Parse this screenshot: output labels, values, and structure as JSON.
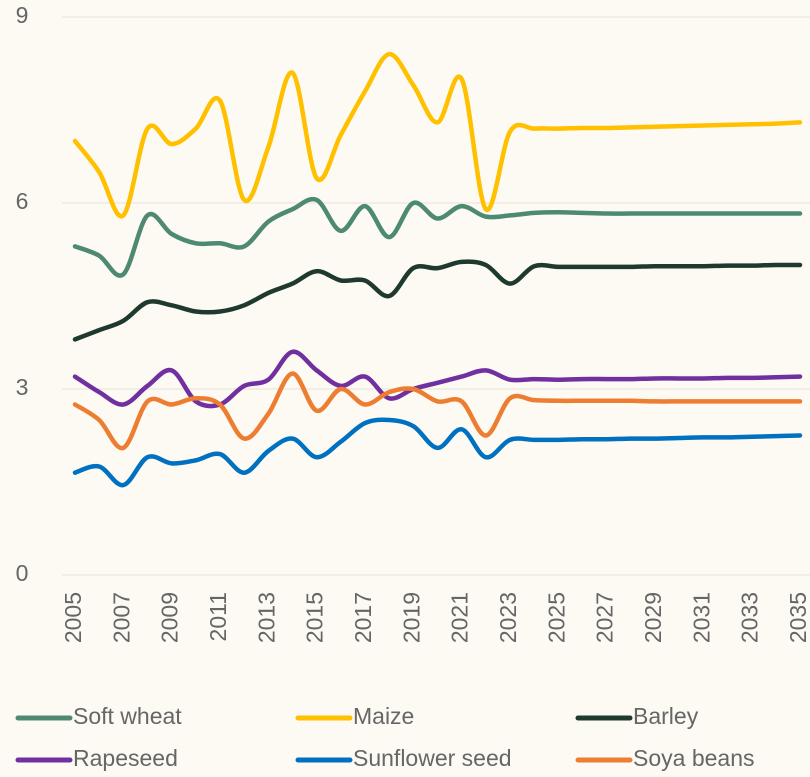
{
  "chart_data": {
    "type": "line",
    "x": [
      2005,
      2006,
      2007,
      2008,
      2009,
      2010,
      2011,
      2012,
      2013,
      2014,
      2015,
      2016,
      2017,
      2018,
      2019,
      2020,
      2021,
      2022,
      2023,
      2024,
      2025,
      2026,
      2027,
      2028,
      2029,
      2030,
      2031,
      2032,
      2033,
      2034,
      2035
    ],
    "xlim": [
      2005,
      2035
    ],
    "xticks": [
      2005,
      2007,
      2009,
      2011,
      2013,
      2015,
      2017,
      2019,
      2021,
      2023,
      2025,
      2027,
      2029,
      2031,
      2033,
      2035
    ],
    "ylim": [
      0,
      9
    ],
    "yticks": [
      0,
      3,
      6,
      9
    ],
    "grid": true,
    "legend": "bottom",
    "series": [
      {
        "name": "Soft wheat",
        "color": "#4e8a72",
        "values": [
          5.3,
          5.15,
          4.85,
          5.8,
          5.5,
          5.35,
          5.35,
          5.3,
          5.7,
          5.9,
          6.05,
          5.55,
          5.95,
          5.45,
          6.0,
          5.75,
          5.95,
          5.78,
          5.8,
          5.84,
          5.85,
          5.84,
          5.83,
          5.83,
          5.83,
          5.83,
          5.83,
          5.83,
          5.83,
          5.83,
          5.83
        ]
      },
      {
        "name": "Maize",
        "color": "#ffc000",
        "values": [
          7.0,
          6.5,
          5.8,
          7.2,
          6.95,
          7.2,
          7.65,
          6.05,
          6.9,
          8.1,
          6.4,
          7.1,
          7.8,
          8.4,
          7.9,
          7.3,
          8.0,
          5.9,
          7.15,
          7.2,
          7.2,
          7.21,
          7.21,
          7.22,
          7.23,
          7.24,
          7.25,
          7.26,
          7.27,
          7.28,
          7.3
        ]
      },
      {
        "name": "Barley",
        "color": "#1e3a2e",
        "values": [
          3.8,
          3.95,
          4.1,
          4.4,
          4.35,
          4.25,
          4.25,
          4.35,
          4.55,
          4.7,
          4.9,
          4.75,
          4.75,
          4.5,
          4.95,
          4.95,
          5.05,
          5.0,
          4.7,
          4.98,
          4.97,
          4.97,
          4.97,
          4.97,
          4.98,
          4.98,
          4.98,
          4.99,
          4.99,
          5.0,
          5.0
        ]
      },
      {
        "name": "Rapeseed",
        "color": "#7030a0",
        "values": [
          3.2,
          2.95,
          2.75,
          3.05,
          3.3,
          2.8,
          2.75,
          3.05,
          3.15,
          3.6,
          3.3,
          3.05,
          3.2,
          2.85,
          3.0,
          3.1,
          3.2,
          3.3,
          3.15,
          3.16,
          3.15,
          3.16,
          3.16,
          3.16,
          3.17,
          3.17,
          3.17,
          3.18,
          3.18,
          3.19,
          3.2
        ]
      },
      {
        "name": "Sunflower seed",
        "color": "#0070c0",
        "values": [
          1.65,
          1.75,
          1.45,
          1.9,
          1.8,
          1.85,
          1.95,
          1.65,
          2.0,
          2.2,
          1.9,
          2.15,
          2.45,
          2.5,
          2.4,
          2.05,
          2.35,
          1.9,
          2.18,
          2.18,
          2.18,
          2.19,
          2.19,
          2.2,
          2.2,
          2.21,
          2.22,
          2.22,
          2.23,
          2.24,
          2.25
        ]
      },
      {
        "name": "Soya beans",
        "color": "#ed7d31",
        "values": [
          2.75,
          2.5,
          2.05,
          2.8,
          2.75,
          2.85,
          2.75,
          2.2,
          2.6,
          3.25,
          2.65,
          3.0,
          2.75,
          2.95,
          3.0,
          2.8,
          2.8,
          2.25,
          2.85,
          2.82,
          2.81,
          2.81,
          2.81,
          2.81,
          2.8,
          2.8,
          2.8,
          2.8,
          2.8,
          2.8,
          2.8
        ]
      }
    ]
  }
}
